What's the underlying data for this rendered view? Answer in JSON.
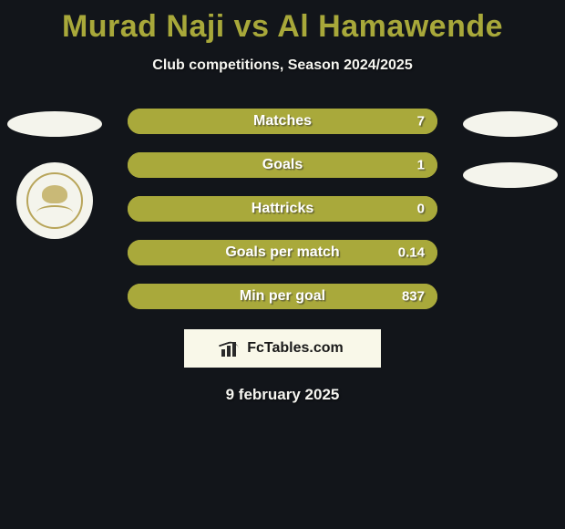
{
  "page": {
    "title": "Murad Naji vs Al Hamawende",
    "subtitle": "Club competitions, Season 2024/2025",
    "date": "9 february 2025",
    "background_color": "#12151a",
    "accent_color": "#a8a83a",
    "text_color": "#f5f5f0"
  },
  "brand": {
    "text": "FcTables.com",
    "icon": "bar-chart-icon",
    "box_bg": "#f9f8e9"
  },
  "stats": {
    "pill_border": "#a9a93b",
    "pill_fill": "#a9a93b",
    "label_color": "#ffffff",
    "rows": [
      {
        "label": "Matches",
        "value": "7",
        "fill_pct": 100
      },
      {
        "label": "Goals",
        "value": "1",
        "fill_pct": 100
      },
      {
        "label": "Hattricks",
        "value": "0",
        "fill_pct": 100
      },
      {
        "label": "Goals per match",
        "value": "0.14",
        "fill_pct": 100
      },
      {
        "label": "Min per goal",
        "value": "837",
        "fill_pct": 100
      }
    ]
  },
  "left_logos": {
    "items": [
      {
        "shape": "oval",
        "color": "#f4f4ec"
      },
      {
        "shape": "circle",
        "color": "#f4f4ec",
        "icon": "club-emblem"
      }
    ]
  },
  "right_logos": {
    "items": [
      {
        "shape": "oval",
        "color": "#f4f4ec"
      },
      {
        "shape": "oval",
        "color": "#f4f4ec"
      }
    ]
  }
}
